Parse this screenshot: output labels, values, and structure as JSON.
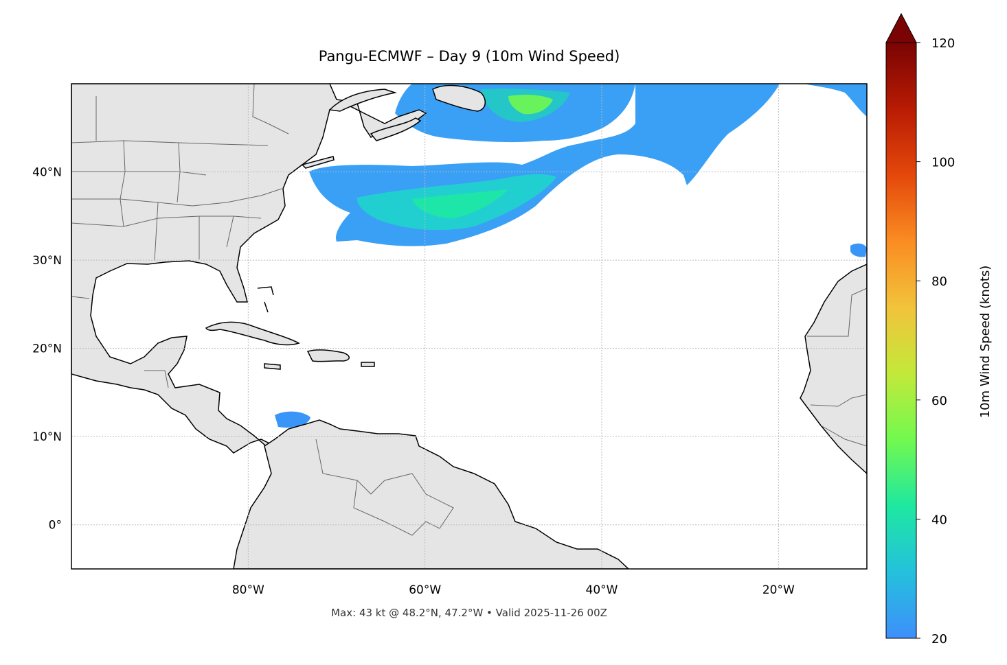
{
  "title": "Pangu-ECMWF – Day 9 (10m Wind Speed)",
  "footer": "Max: 43 kt @ 48.2°N, 47.2°W • Valid 2025-11-26 00Z",
  "map": {
    "lon_range": [
      -100,
      -10
    ],
    "lat_range": [
      -5,
      50
    ],
    "lon_ticks": [
      {
        "value": -80,
        "label": "80°W"
      },
      {
        "value": -60,
        "label": "60°W"
      },
      {
        "value": -40,
        "label": "40°W"
      },
      {
        "value": -20,
        "label": "20°W"
      }
    ],
    "lat_ticks": [
      {
        "value": 0,
        "label": "0°"
      },
      {
        "value": 10,
        "label": "10°N"
      },
      {
        "value": 20,
        "label": "20°N"
      },
      {
        "value": 30,
        "label": "30°N"
      },
      {
        "value": 40,
        "label": "40°N"
      }
    ],
    "land_color": "#e5e5e5",
    "coast_color": "#000000",
    "border_color": "#666666",
    "grid_color": "#bbbbbb"
  },
  "colorbar": {
    "label": "10m Wind Speed (knots)",
    "min": 20,
    "max": 120,
    "ticks": [
      20,
      40,
      60,
      80,
      100,
      120
    ],
    "extend": "max",
    "colors": [
      "#3e8ffb",
      "#24c1dc",
      "#1ee8a0",
      "#72f94f",
      "#c3e93a",
      "#f2c33b",
      "#fa8c22",
      "#e4480b",
      "#b81b03",
      "#7a0403"
    ]
  },
  "wind_features": [
    {
      "name": "mid-atlantic-jet",
      "speed_kt": 30
    },
    {
      "name": "newfoundland-max",
      "speed_kt": 43
    },
    {
      "name": "caribbean-patch",
      "speed_kt": 24
    },
    {
      "name": "canary-patch",
      "speed_kt": 22
    }
  ]
}
